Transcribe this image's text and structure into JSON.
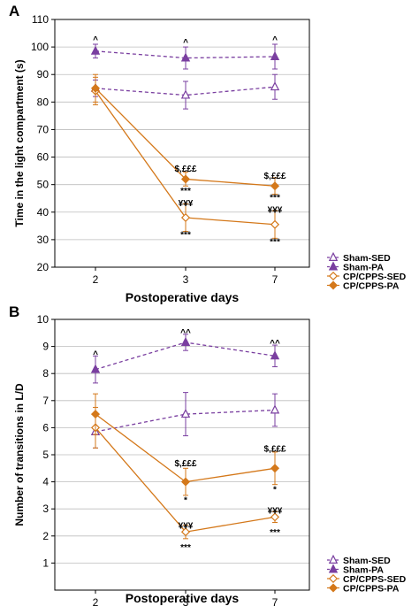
{
  "colors": {
    "sham": "#7a3fa0",
    "cp": "#d4781a",
    "grid": "#bdbdbd",
    "axis": "#000000"
  },
  "chart_data": [
    {
      "panel": "A",
      "type": "line",
      "xlabel": "Postoperative days",
      "ylabel": "Time in the light compartment (s)",
      "categories": [
        "2",
        "3",
        "7"
      ],
      "ylim": [
        20,
        110
      ],
      "yticks": [
        20,
        30,
        40,
        50,
        60,
        70,
        80,
        90,
        100,
        110
      ],
      "grid": true,
      "series": [
        {
          "name": "Sham-SED",
          "marker": "triangle-open",
          "line": "dashed",
          "color": "#7a3fa0",
          "values": [
            85,
            82.5,
            85.5
          ],
          "err": [
            3,
            5,
            4.5
          ]
        },
        {
          "name": "Sham-PA",
          "marker": "triangle-filled",
          "line": "dashed",
          "color": "#7a3fa0",
          "values": [
            98.5,
            96,
            96.5
          ],
          "err": [
            2.5,
            4,
            4.5
          ]
        },
        {
          "name": "CP/CPPS-SED",
          "marker": "diamond-open",
          "line": "solid",
          "color": "#d4781a",
          "values": [
            84,
            38,
            35.5
          ],
          "err": [
            5,
            5,
            5
          ]
        },
        {
          "name": "CP/CPPS-PA",
          "marker": "diamond-filled",
          "line": "solid",
          "color": "#d4781a",
          "values": [
            85,
            52,
            49.5
          ],
          "err": [
            5,
            2.5,
            3
          ]
        }
      ],
      "annotations": [
        {
          "x": "2",
          "y": 103,
          "text": "^"
        },
        {
          "x": "3",
          "y": 102,
          "text": "^"
        },
        {
          "x": "7",
          "y": 103,
          "text": "^"
        },
        {
          "x": "3",
          "y": 56,
          "text": "$,£££"
        },
        {
          "x": "7",
          "y": 53.5,
          "text": "$,£££"
        },
        {
          "x": "3",
          "y": 48,
          "text": "***"
        },
        {
          "x": "7",
          "y": 45.5,
          "text": "***"
        },
        {
          "x": "3",
          "y": 43.5,
          "text": "¥¥¥"
        },
        {
          "x": "7",
          "y": 41,
          "text": "¥¥¥"
        },
        {
          "x": "3",
          "y": 32,
          "text": "***"
        },
        {
          "x": "7",
          "y": 29.5,
          "text": "***"
        }
      ],
      "legend": "outside-bottom-right"
    },
    {
      "panel": "B",
      "type": "line",
      "xlabel": "Postoperative days",
      "ylabel": "Number of transitions in L/D",
      "categories": [
        "2",
        "3",
        "7"
      ],
      "ylim": [
        0,
        10
      ],
      "yticks": [
        1,
        2,
        3,
        4,
        5,
        6,
        7,
        8,
        9,
        10
      ],
      "grid": true,
      "series": [
        {
          "name": "Sham-SED",
          "marker": "triangle-open",
          "line": "dashed",
          "color": "#7a3fa0",
          "values": [
            5.85,
            6.5,
            6.65
          ],
          "err": [
            0.6,
            0.8,
            0.6
          ]
        },
        {
          "name": "Sham-PA",
          "marker": "triangle-filled",
          "line": "dashed",
          "color": "#7a3fa0",
          "values": [
            8.15,
            9.15,
            8.65
          ],
          "err": [
            0.5,
            0.3,
            0.4
          ]
        },
        {
          "name": "CP/CPPS-SED",
          "marker": "diamond-open",
          "line": "solid",
          "color": "#d4781a",
          "values": [
            6.0,
            2.15,
            2.7
          ],
          "err": [
            0.75,
            0.25,
            0.2
          ]
        },
        {
          "name": "CP/CPPS-PA",
          "marker": "diamond-filled",
          "line": "solid",
          "color": "#d4781a",
          "values": [
            6.5,
            4.0,
            4.5
          ],
          "err": [
            0.75,
            0.5,
            0.6
          ]
        }
      ],
      "annotations": [
        {
          "x": "2",
          "y": 8.75,
          "text": "^"
        },
        {
          "x": "3",
          "y": 9.55,
          "text": "^^"
        },
        {
          "x": "7",
          "y": 9.15,
          "text": "^^"
        },
        {
          "x": "3",
          "y": 4.7,
          "text": "$,£££"
        },
        {
          "x": "7",
          "y": 5.25,
          "text": "$,£££"
        },
        {
          "x": "3",
          "y": 3.35,
          "text": "*"
        },
        {
          "x": "7",
          "y": 3.75,
          "text": "*"
        },
        {
          "x": "3",
          "y": 2.4,
          "text": "¥¥¥"
        },
        {
          "x": "7",
          "y": 2.95,
          "text": "¥¥¥"
        },
        {
          "x": "3",
          "y": 1.6,
          "text": "***"
        },
        {
          "x": "7",
          "y": 2.15,
          "text": "***"
        }
      ],
      "legend": "outside-bottom-right"
    }
  ]
}
